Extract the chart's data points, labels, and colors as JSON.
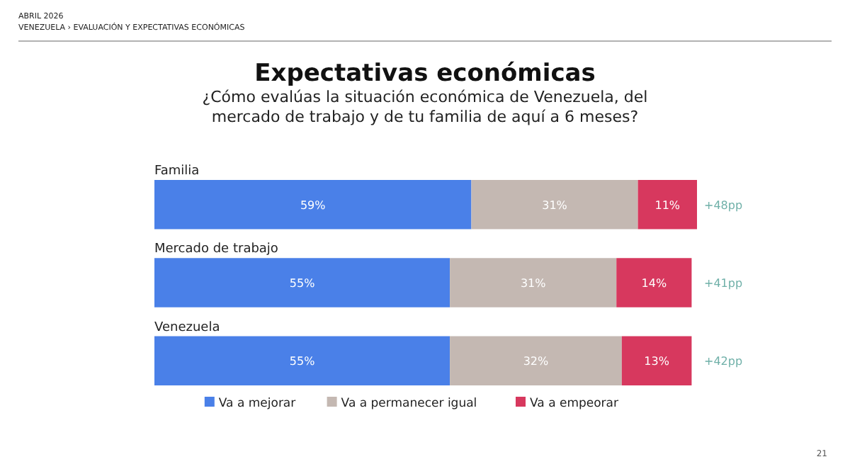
{
  "chart_data": {
    "type": "bar",
    "orientation": "horizontal",
    "stacked": true,
    "title": "Expectativas económicas",
    "subtitle": "¿Cómo evalúas la situación económica de Venezuela, del mercado de trabajo y de tu familia de aquí a 6 meses?",
    "categories": [
      "Familia",
      "Mercado de trabajo",
      "Venezuela"
    ],
    "series": [
      {
        "name": "Va a mejorar",
        "color": "#4a80e8",
        "values": [
          59,
          55,
          55
        ],
        "value_labels": [
          "59%",
          "55%",
          "55%"
        ]
      },
      {
        "name": "Va a permanecer igual",
        "color": "#c4b8b2",
        "values": [
          31,
          31,
          32
        ],
        "value_labels": [
          "31%",
          "31%",
          "32%"
        ]
      },
      {
        "name": "Va a empeorar",
        "color": "#d7385e",
        "values": [
          11,
          14,
          13
        ],
        "value_labels": [
          "11%",
          "14%",
          "13%"
        ]
      }
    ],
    "legend": "bottom",
    "annotations": [
      "ABRIL 2026",
      "VENEZUELA › EVALUACIÓN Y EXPECTATIVAS ECONÓMICAS",
      "21",
      "+48pp",
      "+41pp",
      "+42pp"
    ]
  }
}
